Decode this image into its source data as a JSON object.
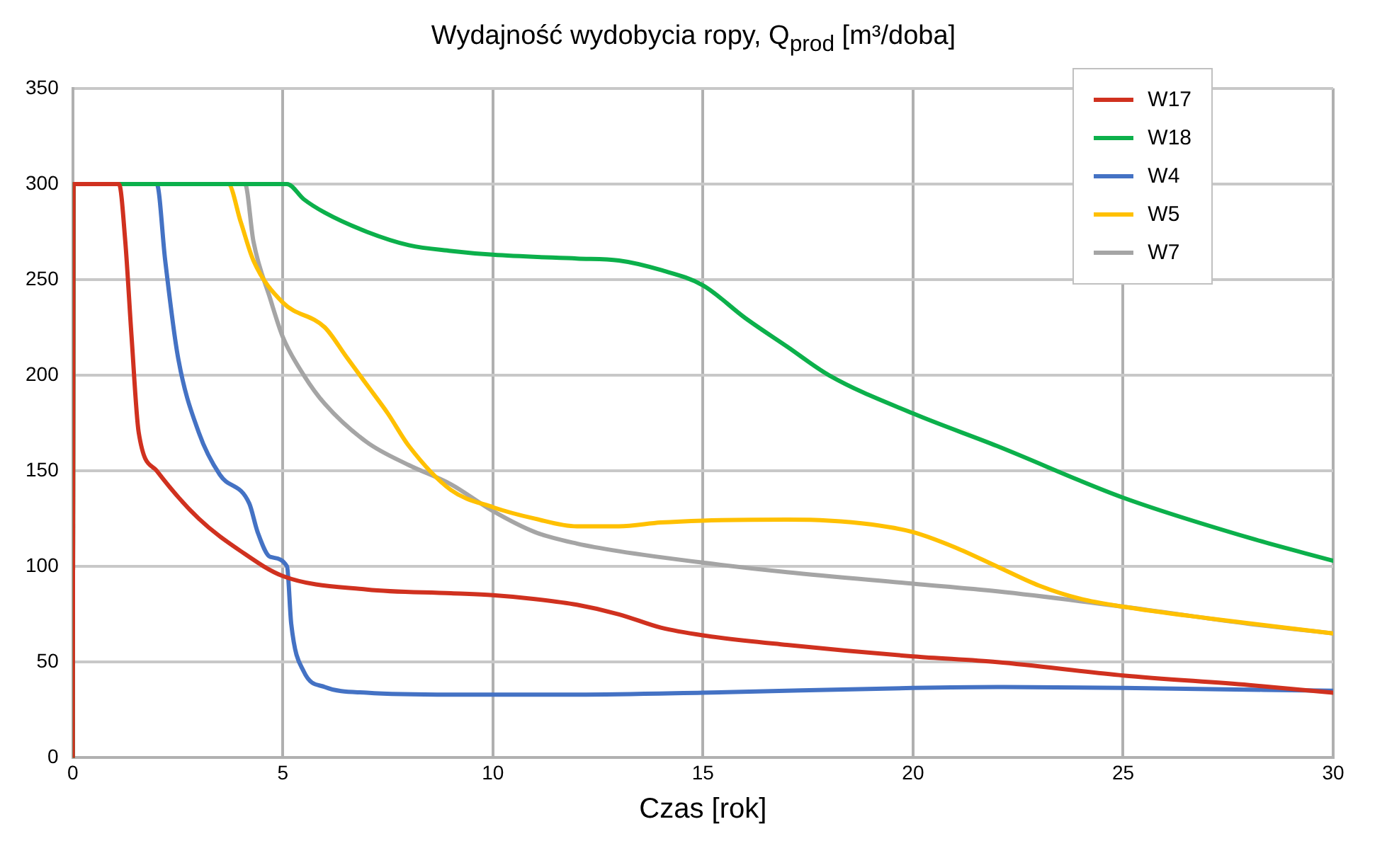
{
  "chart_data": {
    "type": "line",
    "title": "Wydajność wydobycia ropy, Q$_{prod}$ [m³/doba]",
    "xlabel": "Czas [rok]",
    "xlim": [
      0,
      30
    ],
    "xticks": [
      0,
      5,
      10,
      15,
      20,
      25,
      30
    ],
    "ylim": [
      0,
      350
    ],
    "yticks": [
      0,
      50,
      100,
      150,
      200,
      250,
      300,
      350
    ],
    "grid": true,
    "legend": "top right",
    "marker": "none",
    "line_style": "solid",
    "series": [
      {
        "name": "W17",
        "color": "#d0311f",
        "x": [
          0,
          0.02,
          1.1,
          1.25,
          1.4,
          1.57,
          2,
          3,
          4,
          5,
          7,
          9,
          10,
          11,
          12,
          13,
          14,
          15,
          17,
          20,
          22,
          25,
          28,
          30
        ],
        "values": [
          0,
          300,
          300,
          270,
          220,
          170,
          150,
          125,
          108,
          95,
          88,
          86,
          85,
          83,
          80,
          75,
          68,
          64,
          59,
          53,
          50,
          43,
          38,
          34
        ]
      },
      {
        "name": "W18",
        "color": "#0cb04b",
        "x": [
          0,
          0.02,
          5.1,
          5.5,
          6,
          7,
          8,
          9,
          10,
          12,
          13,
          14,
          15,
          16,
          17,
          18,
          20,
          22,
          25,
          28,
          30
        ],
        "values": [
          0,
          300,
          300,
          292,
          285,
          275,
          268,
          265,
          263,
          261,
          260,
          255,
          247,
          230,
          215,
          200,
          180,
          163,
          136,
          115,
          103
        ]
      },
      {
        "name": "W4",
        "color": "#4472c4",
        "x": [
          0,
          0.02,
          2,
          2.2,
          2.5,
          3,
          3.5,
          4.2,
          4.4,
          4.7,
          5.1,
          5.2,
          5.5,
          6,
          7,
          9,
          12,
          15,
          20,
          22,
          25,
          30
        ],
        "values": [
          0,
          300,
          300,
          260,
          210,
          170,
          148,
          133,
          118,
          105,
          100,
          70,
          45,
          37,
          34,
          33,
          33,
          34,
          36.5,
          37,
          36.5,
          35
        ]
      },
      {
        "name": "W5",
        "color": "#ffc000",
        "x": [
          0,
          0.02,
          3.7,
          4,
          4.3,
          5,
          6,
          6.5,
          7,
          7.5,
          8,
          9,
          10,
          11,
          12,
          13,
          14,
          15,
          17,
          18,
          19,
          20,
          21,
          22,
          23,
          24,
          25,
          27,
          30
        ],
        "values": [
          0,
          300,
          300,
          280,
          260,
          238,
          225,
          210,
          195,
          180,
          163,
          140,
          131,
          125,
          121,
          121,
          123,
          124,
          124.5,
          124,
          122,
          118,
          110,
          100,
          90,
          83,
          79,
          73,
          65
        ]
      },
      {
        "name": "W7",
        "color": "#a5a5a5",
        "x": [
          0,
          0.02,
          4.1,
          4.3,
          4.7,
          5,
          5.5,
          6,
          7,
          8,
          9,
          10,
          11,
          12,
          13,
          15,
          17,
          20,
          22,
          25,
          28,
          30
        ],
        "values": [
          0,
          300,
          300,
          270,
          240,
          220,
          200,
          185,
          165,
          153,
          143,
          129,
          118,
          112,
          108,
          102,
          97,
          91,
          87,
          79,
          70,
          65
        ]
      }
    ]
  }
}
